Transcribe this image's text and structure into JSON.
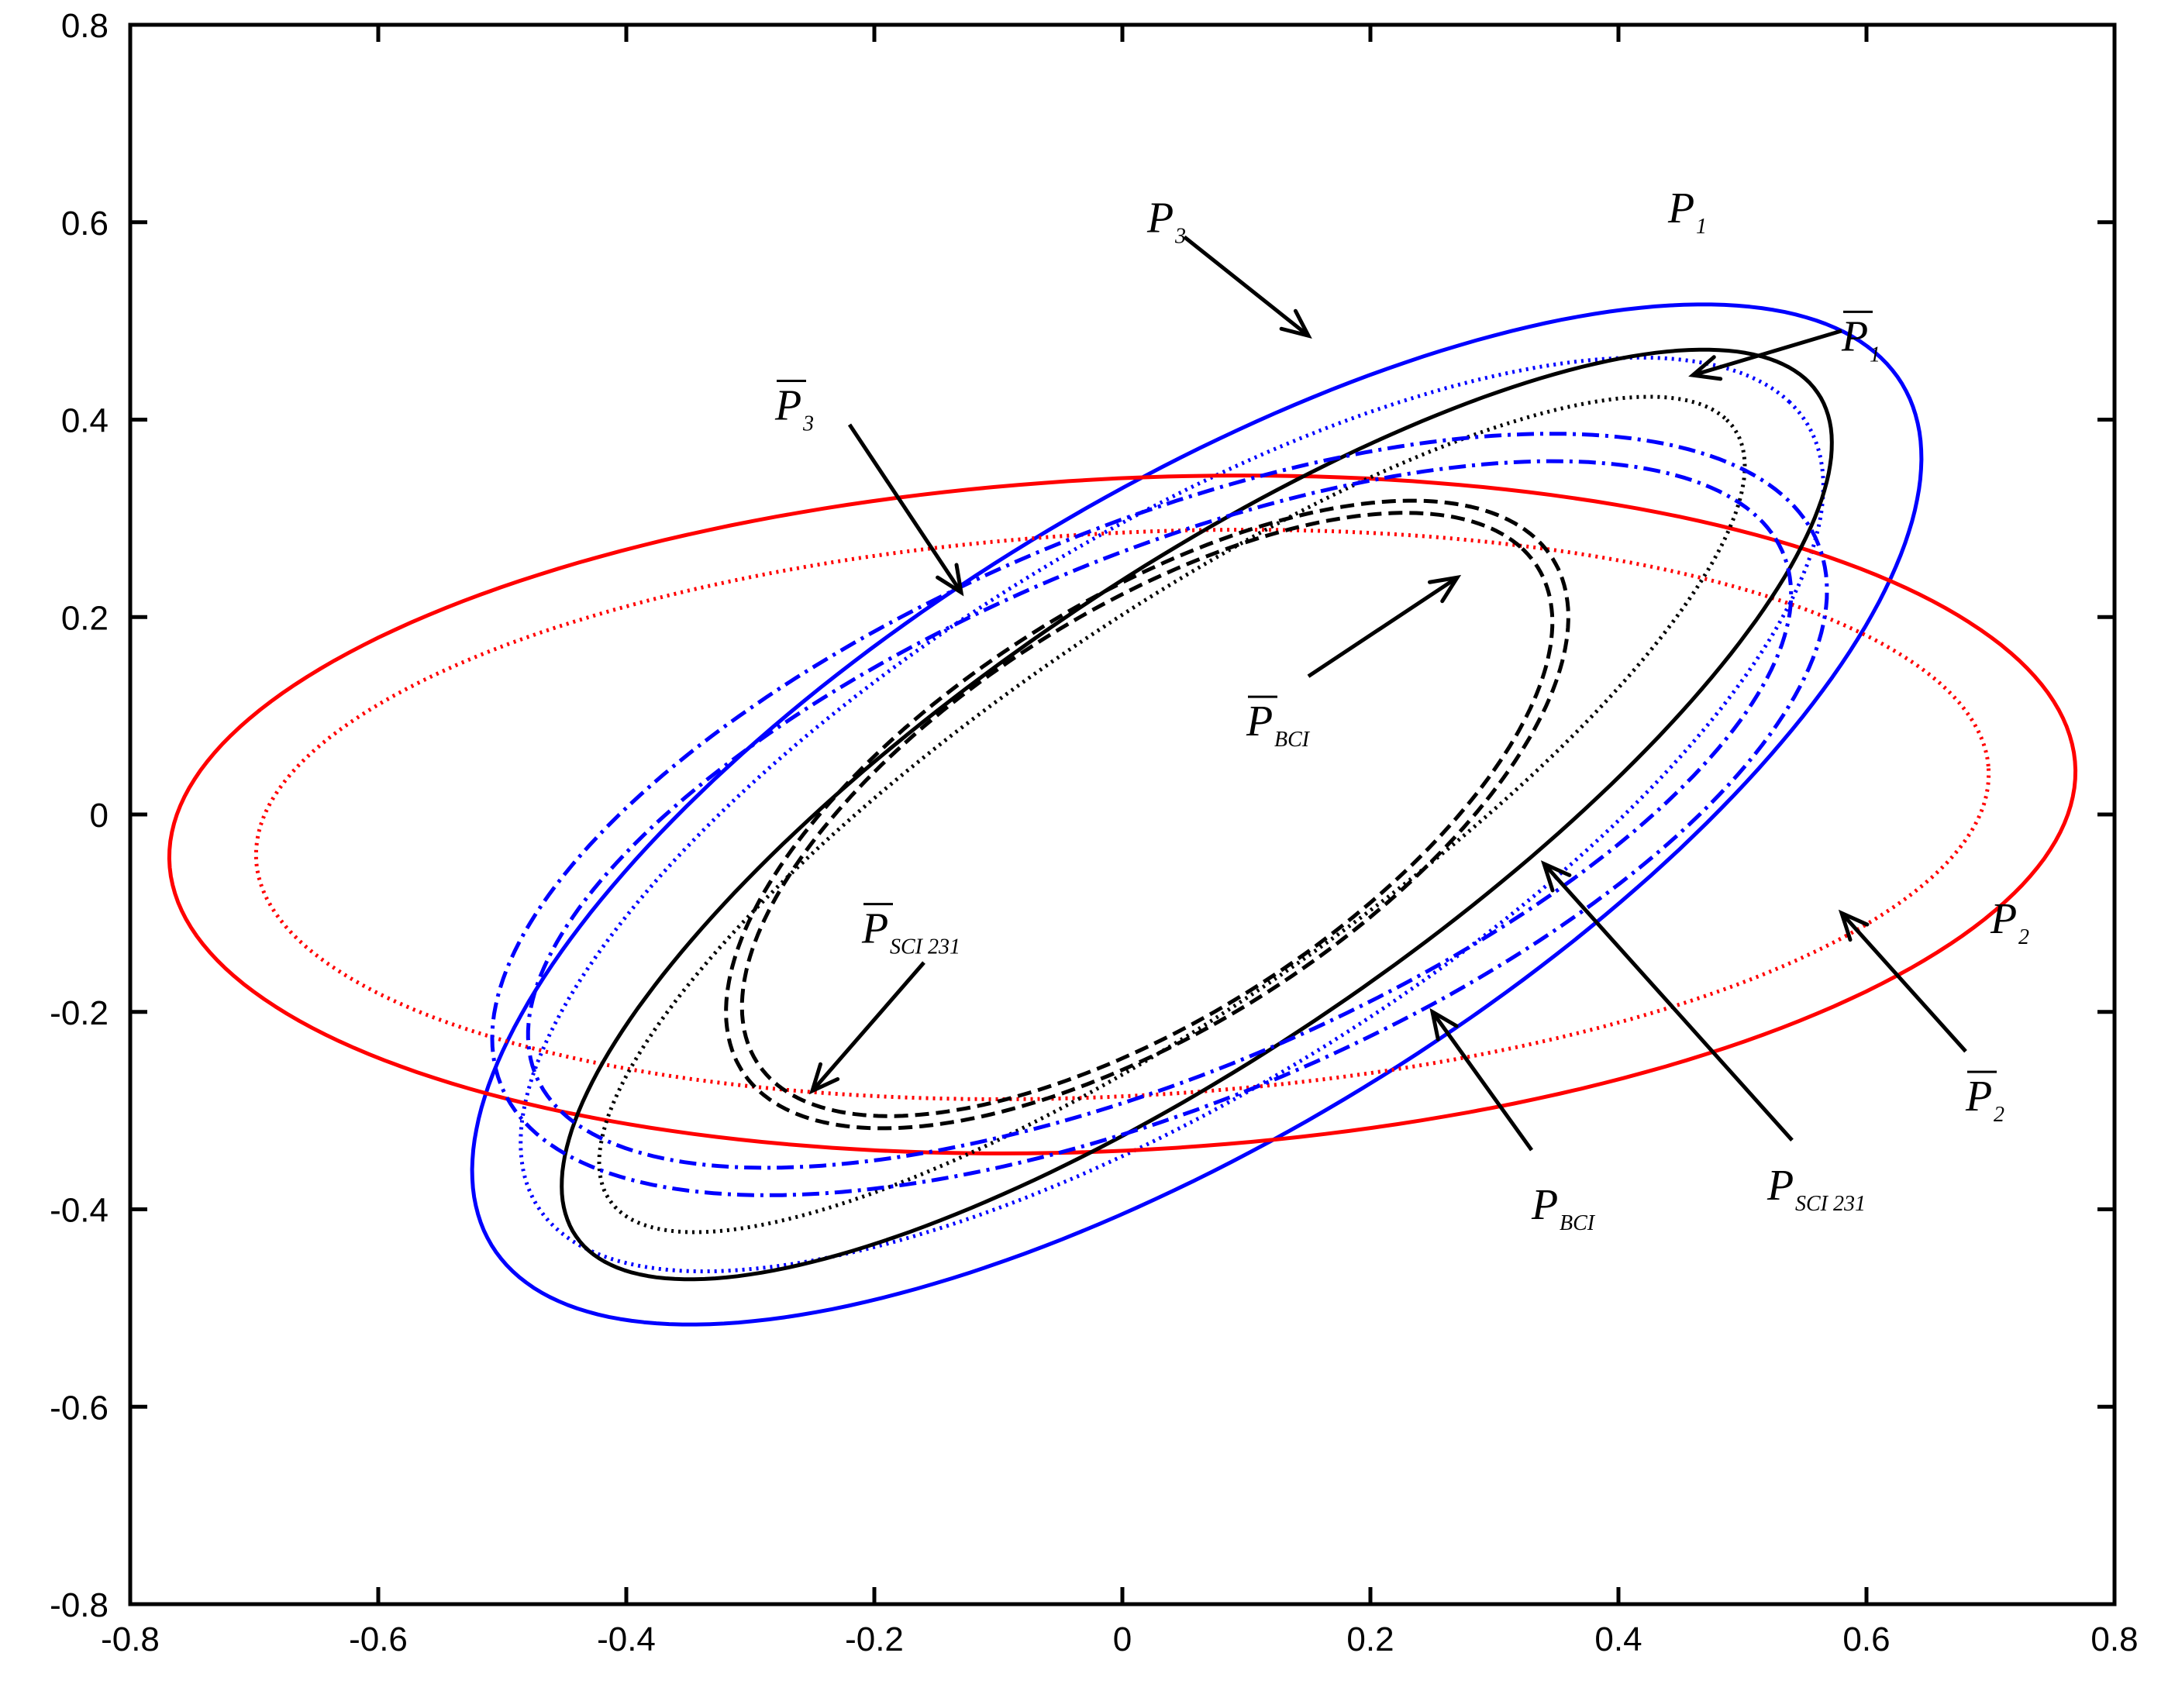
{
  "chart_data": {
    "type": "line",
    "title": "",
    "xlabel": "",
    "ylabel": "",
    "xlim": [
      -0.8,
      0.8
    ],
    "ylim": [
      -0.8,
      0.8
    ],
    "xticks": [
      "-0.8",
      "-0.6",
      "-0.4",
      "-0.2",
      "0",
      "0.2",
      "0.4",
      "0.6",
      "0.8"
    ],
    "yticks": [
      "-0.8",
      "-0.6",
      "-0.4",
      "-0.2",
      "0",
      "0.2",
      "0.4",
      "0.6",
      "0.8"
    ],
    "grid": false,
    "series": [
      {
        "key": "P1",
        "color": "#0000ff",
        "style": "solid",
        "width": 5,
        "cx": 0.06,
        "cy": 0.0,
        "a": 0.72,
        "b": 0.3,
        "angle": 40
      },
      {
        "key": "P1bar",
        "color": "#0000ff",
        "style": "dotted",
        "width": 5,
        "cx": 0.04,
        "cy": 0.0,
        "a": 0.65,
        "b": 0.26,
        "angle": 40
      },
      {
        "key": "P2",
        "color": "#ff0000",
        "style": "solid",
        "width": 5,
        "cx": 0.0,
        "cy": 0.0,
        "a": 0.77,
        "b": 0.34,
        "angle": 4
      },
      {
        "key": "P2bar",
        "color": "#ff0000",
        "style": "dotted",
        "width": 5,
        "cx": 0.0,
        "cy": 0.0,
        "a": 0.7,
        "b": 0.285,
        "angle": 4
      },
      {
        "key": "P3",
        "color": "#000000",
        "style": "solid",
        "width": 5,
        "cx": 0.06,
        "cy": 0.0,
        "a": 0.66,
        "b": 0.22,
        "angle": 42
      },
      {
        "key": "P3bar",
        "color": "#000000",
        "style": "dotted",
        "width": 5,
        "cx": 0.04,
        "cy": 0.0,
        "a": 0.6,
        "b": 0.18,
        "angle": 42
      },
      {
        "key": "PBCI",
        "color": "#0000ff",
        "style": "dashdot",
        "width": 5,
        "cx": 0.03,
        "cy": 0.0,
        "a": 0.6,
        "b": 0.28,
        "angle": 30
      },
      {
        "key": "PSCI231",
        "color": "#0000ff",
        "style": "dashdot",
        "width": 5,
        "cx": 0.03,
        "cy": 0.0,
        "a": 0.57,
        "b": 0.25,
        "angle": 30
      },
      {
        "key": "PBCIbar",
        "color": "#000000",
        "style": "dashed",
        "width": 5,
        "cx": 0.02,
        "cy": 0.0,
        "a": 0.42,
        "b": 0.2,
        "angle": 42
      },
      {
        "key": "PSCI231bar",
        "color": "#000000",
        "style": "dashed",
        "width": 5,
        "cx": 0.02,
        "cy": 0.0,
        "a": 0.405,
        "b": 0.19,
        "angle": 42
      }
    ],
    "annotations": [
      {
        "key": "P1",
        "main": "P",
        "sub": "1",
        "bar": false,
        "label_x": 0.44,
        "label_y": 0.6,
        "arrow": false
      },
      {
        "key": "P1bar",
        "main": "P",
        "sub": "1",
        "bar": true,
        "label_x": 0.58,
        "label_y": 0.47,
        "arrow": true,
        "from_x": 0.58,
        "from_y": 0.49,
        "to_x": 0.46,
        "to_y": 0.445
      },
      {
        "key": "P3",
        "main": "P",
        "sub": "3",
        "bar": false,
        "label_x": 0.02,
        "label_y": 0.59,
        "arrow": true,
        "from_x": 0.05,
        "from_y": 0.585,
        "to_x": 0.15,
        "to_y": 0.485
      },
      {
        "key": "P3bar",
        "main": "P",
        "sub": "3",
        "bar": true,
        "label_x": -0.28,
        "label_y": 0.4,
        "arrow": true,
        "from_x": -0.22,
        "from_y": 0.395,
        "to_x": -0.13,
        "to_y": 0.225
      },
      {
        "key": "PBCIbar",
        "main": "P",
        "sub": "BCI",
        "bar": true,
        "label_x": 0.1,
        "label_y": 0.08,
        "arrow": true,
        "from_x": 0.15,
        "from_y": 0.14,
        "to_x": 0.27,
        "to_y": 0.24
      },
      {
        "key": "PSCI231bar",
        "main": "P",
        "sub": "SCI 231",
        "bar": true,
        "label_x": -0.21,
        "label_y": -0.13,
        "arrow": true,
        "from_x": -0.16,
        "from_y": -0.15,
        "to_x": -0.25,
        "to_y": -0.28
      },
      {
        "key": "PBCI",
        "main": "P",
        "sub": "BCI",
        "bar": false,
        "label_x": 0.33,
        "label_y": -0.41,
        "arrow": true,
        "from_x": 0.33,
        "from_y": -0.34,
        "to_x": 0.25,
        "to_y": -0.2
      },
      {
        "key": "PSCI231",
        "main": "P",
        "sub": "SCI 231",
        "bar": false,
        "label_x": 0.52,
        "label_y": -0.39,
        "arrow": true,
        "from_x": 0.54,
        "from_y": -0.33,
        "to_x": 0.34,
        "to_y": -0.05
      },
      {
        "key": "P2bar",
        "main": "P",
        "sub": "2",
        "bar": true,
        "label_x": 0.68,
        "label_y": -0.3,
        "arrow": true,
        "from_x": 0.68,
        "from_y": -0.24,
        "to_x": 0.58,
        "to_y": -0.1
      },
      {
        "key": "P2",
        "main": "P",
        "sub": "2",
        "bar": false,
        "label_x": 0.7,
        "label_y": -0.12,
        "arrow": false
      }
    ]
  }
}
